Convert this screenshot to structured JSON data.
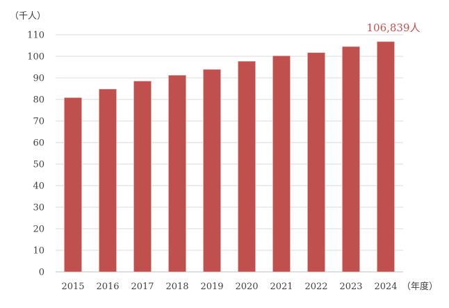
{
  "chart_data": {
    "type": "bar",
    "title": "",
    "ylabel": "（千人）",
    "xlabel": "（年度）",
    "categories": [
      "2015",
      "2016",
      "2017",
      "2018",
      "2019",
      "2020",
      "2021",
      "2022",
      "2023",
      "2024"
    ],
    "values": [
      80.8,
      84.8,
      88.5,
      91.2,
      93.9,
      97.7,
      100.2,
      101.7,
      104.5,
      106.8
    ],
    "ylim": [
      0,
      110
    ],
    "yticks": [
      0,
      10,
      20,
      30,
      40,
      50,
      60,
      70,
      80,
      90,
      100,
      110
    ],
    "grid": true,
    "bar_color": "#c0504d",
    "annotation": {
      "category": "2024",
      "text": "106,839人",
      "color": "#c0504d"
    }
  }
}
